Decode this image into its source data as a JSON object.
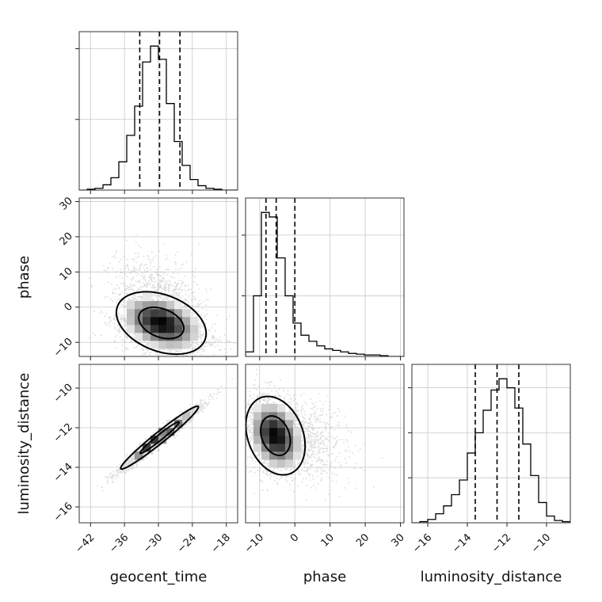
{
  "chart_data": {
    "type": "corner",
    "parameters": [
      "geocent_time",
      "phase",
      "luminosity_distance"
    ],
    "axis_labels": {
      "geocent_time": "geocent_time",
      "phase": "phase",
      "luminosity_distance": "luminosity_distance"
    },
    "ranges": {
      "geocent_time": [
        -44,
        -16
      ],
      "phase": [
        -14,
        31
      ],
      "luminosity_distance": [
        -16.8,
        -8.8
      ]
    },
    "ticks": {
      "geocent_time": [
        -42,
        -36,
        -30,
        -24,
        -18
      ],
      "phase": [
        -10,
        0,
        10,
        20,
        30
      ],
      "luminosity_distance": [
        -16,
        -14,
        -12,
        -10
      ]
    },
    "quantiles": {
      "geocent_time": [
        -33.3,
        -29.8,
        -26.2
      ],
      "phase": [
        -8.2,
        -5.3,
        0.0
      ],
      "luminosity_distance": [
        -13.6,
        -12.5,
        -11.4
      ]
    },
    "histograms": {
      "geocent_time": {
        "edges": [
          -44,
          -42.6,
          -41.2,
          -39.8,
          -38.4,
          -37,
          -35.6,
          -34.2,
          -32.8,
          -31.4,
          -30,
          -28.6,
          -27.2,
          -25.8,
          -24.4,
          -23,
          -21.6,
          -20.2,
          -18.8,
          -17.4,
          -16
        ],
        "counts": [
          0,
          1,
          2,
          6,
          14,
          32,
          62,
          95,
          145,
          163,
          148,
          98,
          55,
          28,
          12,
          5,
          2,
          1,
          0,
          0
        ]
      },
      "phase": {
        "edges": [
          -14,
          -11.75,
          -9.5,
          -7.25,
          -5,
          -2.75,
          -0.5,
          1.75,
          4,
          6.25,
          8.5,
          10.75,
          13,
          15.25,
          17.5,
          19.75,
          22,
          24.25,
          26.5,
          28.75,
          31
        ],
        "counts": [
          3,
          40,
          95,
          92,
          65,
          40,
          22,
          14,
          10,
          7,
          5,
          4,
          3,
          2,
          1.5,
          1,
          1,
          0.5,
          0,
          0
        ]
      },
      "luminosity_distance": {
        "edges": [
          -16.8,
          -16.4,
          -16,
          -15.6,
          -15.2,
          -14.8,
          -14.4,
          -14,
          -13.6,
          -13.2,
          -12.8,
          -12.4,
          -12,
          -11.6,
          -11.2,
          -10.8,
          -10.4,
          -10,
          -9.6,
          -9.2,
          -8.8
        ],
        "counts": [
          0,
          1,
          3,
          8,
          15,
          25,
          38,
          62,
          80,
          100,
          118,
          128,
          120,
          102,
          70,
          42,
          18,
          6,
          2,
          1
        ]
      }
    },
    "joint": [
      {
        "x": "geocent_time",
        "y": "phase",
        "mean": [
          -29.5,
          -4.5
        ],
        "cov": [
          [
            16,
            -6
          ],
          [
            -6,
            20
          ]
        ]
      },
      {
        "x": "geocent_time",
        "y": "luminosity_distance",
        "mean": [
          -29.8,
          -12.5
        ],
        "cov": [
          [
            12,
            2.7
          ],
          [
            2.7,
            0.64
          ]
        ]
      },
      {
        "x": "phase",
        "y": "luminosity_distance",
        "mean": [
          -5.5,
          -12.4
        ],
        "cov": [
          [
            18,
            -1.1
          ],
          [
            -1.1,
            1.0
          ]
        ]
      }
    ],
    "contour_levels": [
      0.39,
      0.86
    ]
  }
}
